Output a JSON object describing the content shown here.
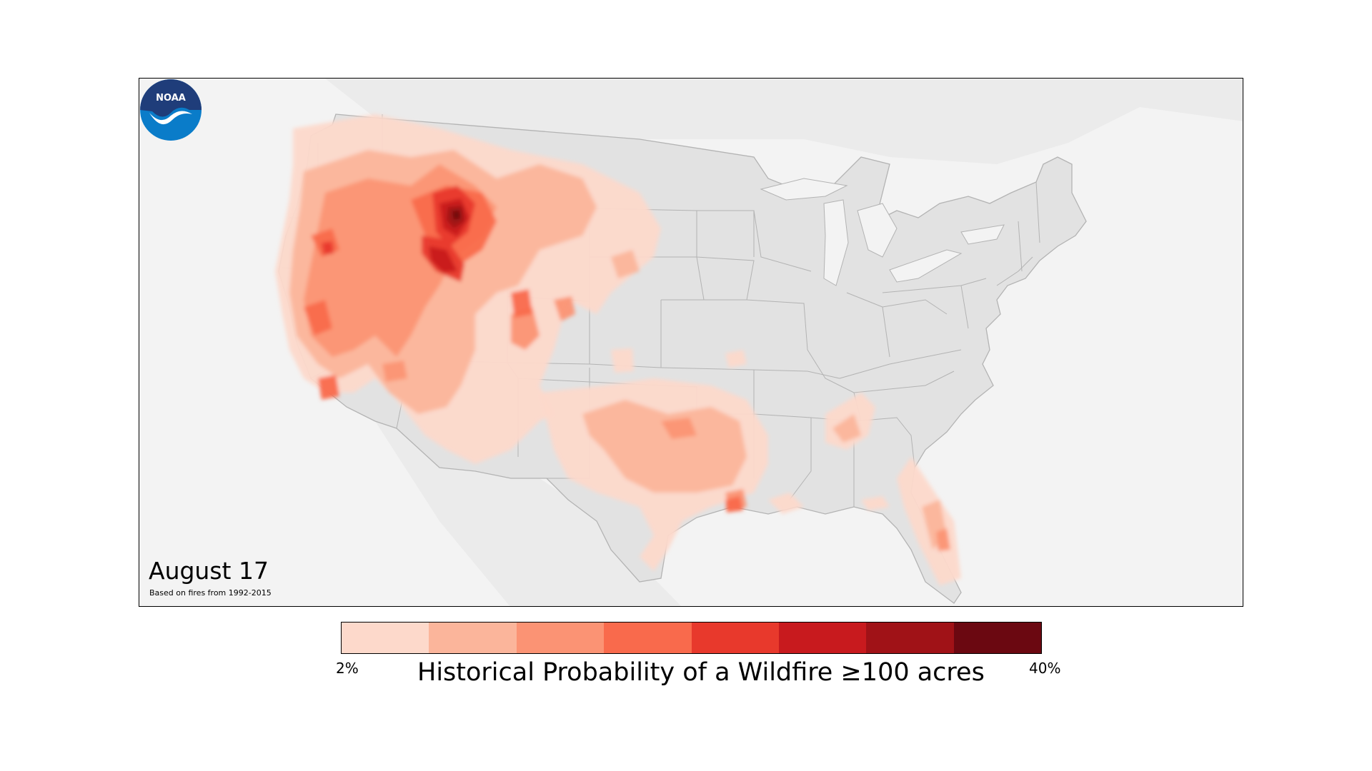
{
  "map": {
    "date_label": "August 17",
    "subnote": "Based on fires from 1992-2015",
    "logo_text": "NOAA",
    "colors": {
      "ocean": "#f3f3f3",
      "land": "#e2e2e2",
      "land_stroke": "#b3b3b3",
      "canada_mexico": "#ebebeb",
      "logo_top": "#1f3d7a",
      "logo_bottom": "#0a7cc9"
    }
  },
  "legend": {
    "title": "Historical Probability of a Wildfire ≥100 acres",
    "min_label": "2%",
    "max_label": "40%",
    "colors": [
      "#fdd9cb",
      "#fbb59b",
      "#fb9374",
      "#f96a4c",
      "#e8392c",
      "#c81a1e",
      "#a01217",
      "#6b0811"
    ]
  }
}
